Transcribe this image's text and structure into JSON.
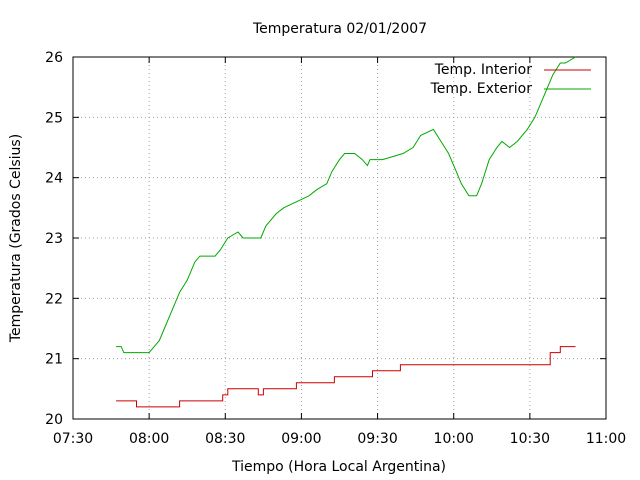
{
  "chart_data": {
    "type": "line",
    "title": "Temperatura 02/01/2007",
    "xlabel": "Tiempo (Hora Local Argentina)",
    "ylabel": "Temperatura (Grados Celsius)",
    "xlim": [
      "07:30",
      "11:00"
    ],
    "ylim": [
      20,
      26
    ],
    "x_ticks": [
      "07:30",
      "08:00",
      "08:30",
      "09:00",
      "09:30",
      "10:00",
      "10:30",
      "11:00"
    ],
    "y_ticks": [
      "20",
      "21",
      "22",
      "23",
      "24",
      "25",
      "26"
    ],
    "grid": true,
    "legend_position": "top-right",
    "series": [
      {
        "name": "Temp. Interior",
        "color": "#cc0000",
        "step": true,
        "points": [
          [
            "07:47",
            20.3
          ],
          [
            "07:55",
            20.2
          ],
          [
            "08:12",
            20.3
          ],
          [
            "08:29",
            20.4
          ],
          [
            "08:31",
            20.5
          ],
          [
            "08:43",
            20.4
          ],
          [
            "08:45",
            20.5
          ],
          [
            "08:58",
            20.6
          ],
          [
            "09:13",
            20.7
          ],
          [
            "09:28",
            20.8
          ],
          [
            "09:39",
            20.9
          ],
          [
            "10:00",
            20.9
          ],
          [
            "10:22",
            20.9
          ],
          [
            "10:38",
            21.1
          ],
          [
            "10:42",
            21.2
          ],
          [
            "10:48",
            21.2
          ]
        ]
      },
      {
        "name": "Temp. Exterior",
        "color": "#00aa00",
        "step": false,
        "points": [
          [
            "07:47",
            21.2
          ],
          [
            "07:49",
            21.2
          ],
          [
            "07:50",
            21.1
          ],
          [
            "08:00",
            21.1
          ],
          [
            "08:02",
            21.2
          ],
          [
            "08:04",
            21.3
          ],
          [
            "08:06",
            21.5
          ],
          [
            "08:09",
            21.8
          ],
          [
            "08:12",
            22.1
          ],
          [
            "08:15",
            22.3
          ],
          [
            "08:18",
            22.6
          ],
          [
            "08:20",
            22.7
          ],
          [
            "08:26",
            22.7
          ],
          [
            "08:28",
            22.8
          ],
          [
            "08:31",
            23.0
          ],
          [
            "08:35",
            23.1
          ],
          [
            "08:37",
            23.0
          ],
          [
            "08:44",
            23.0
          ],
          [
            "08:46",
            23.2
          ],
          [
            "08:50",
            23.4
          ],
          [
            "08:53",
            23.5
          ],
          [
            "08:58",
            23.6
          ],
          [
            "09:03",
            23.7
          ],
          [
            "09:06",
            23.8
          ],
          [
            "09:10",
            23.9
          ],
          [
            "09:12",
            24.1
          ],
          [
            "09:15",
            24.3
          ],
          [
            "09:17",
            24.4
          ],
          [
            "09:21",
            24.4
          ],
          [
            "09:24",
            24.3
          ],
          [
            "09:26",
            24.2
          ],
          [
            "09:27",
            24.3
          ],
          [
            "09:32",
            24.3
          ],
          [
            "09:40",
            24.4
          ],
          [
            "09:44",
            24.5
          ],
          [
            "09:47",
            24.7
          ],
          [
            "09:52",
            24.8
          ],
          [
            "09:55",
            24.6
          ],
          [
            "09:58",
            24.4
          ],
          [
            "10:01",
            24.1
          ],
          [
            "10:03",
            23.9
          ],
          [
            "10:06",
            23.7
          ],
          [
            "10:09",
            23.7
          ],
          [
            "10:11",
            23.9
          ],
          [
            "10:14",
            24.3
          ],
          [
            "10:17",
            24.5
          ],
          [
            "10:19",
            24.6
          ],
          [
            "10:22",
            24.5
          ],
          [
            "10:25",
            24.6
          ],
          [
            "10:29",
            24.8
          ],
          [
            "10:32",
            25.0
          ],
          [
            "10:36",
            25.4
          ],
          [
            "10:39",
            25.7
          ],
          [
            "10:42",
            25.9
          ],
          [
            "10:44",
            25.9
          ],
          [
            "10:48",
            26.0
          ]
        ]
      }
    ]
  }
}
